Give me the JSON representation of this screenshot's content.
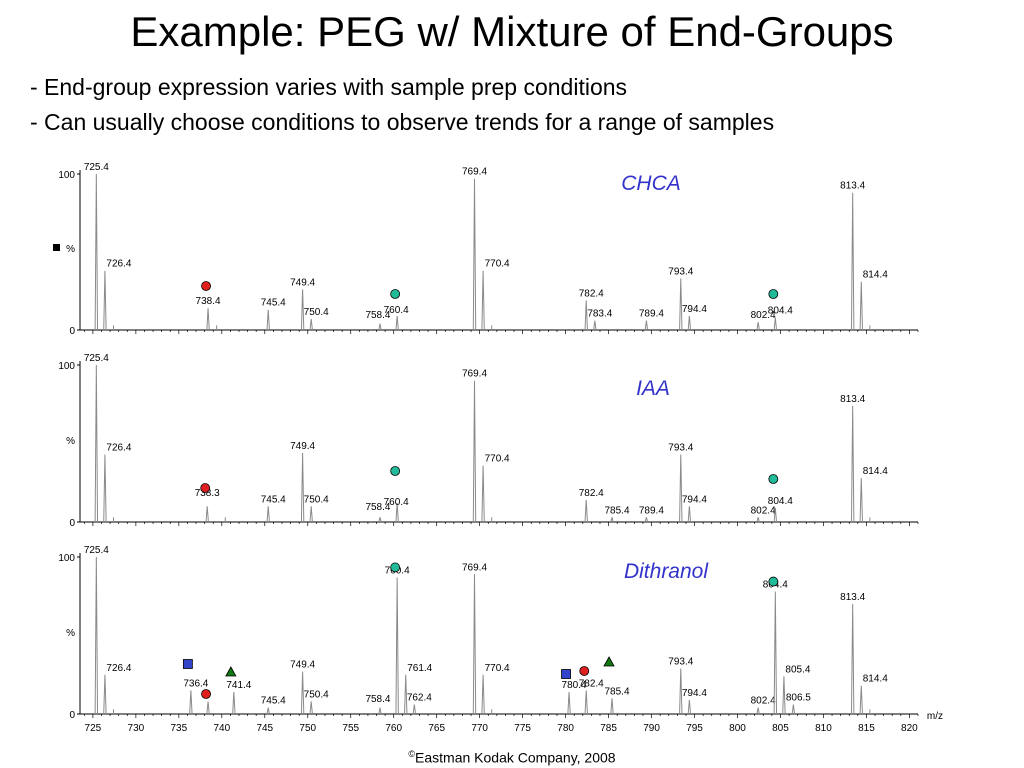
{
  "slide": {
    "title": "Example: PEG w/ Mixture of End-Groups",
    "bullets": [
      "- End-group expression varies with sample prep conditions",
      "- Can usually choose conditions to observe trends for a range of samples"
    ],
    "footer_symbol": "©",
    "footer_text": "Eastman Kodak Company, 2008"
  },
  "colors": {
    "spectrum_line": "#8a8a8a",
    "matrix_label": "#3333cc",
    "red_circle": "#e02020",
    "teal_circle": "#22bb99",
    "blue_square": "#3344cc",
    "green_triangle": "#117711"
  },
  "chart_data": [
    {
      "type": "line",
      "title": "CHCA",
      "xlabel": "m/z",
      "ylabel": "%",
      "xlim": [
        723.5,
        821
      ],
      "ylim": [
        0,
        100
      ],
      "yticks": [
        "0",
        "100"
      ],
      "xticks": [],
      "ylabel_marker": "black-square",
      "peaks": [
        {
          "mz": 725.4,
          "intensity": 100,
          "label": "725.4"
        },
        {
          "mz": 726.4,
          "intensity": 38,
          "label": "726.4"
        },
        {
          "mz": 738.4,
          "intensity": 14,
          "label": "738.4",
          "marker": "red-circle"
        },
        {
          "mz": 745.4,
          "intensity": 13,
          "label": "745.4"
        },
        {
          "mz": 749.4,
          "intensity": 26,
          "label": "749.4"
        },
        {
          "mz": 750.4,
          "intensity": 7,
          "label": "750.4"
        },
        {
          "mz": 758.4,
          "intensity": 4,
          "label": "758.4"
        },
        {
          "mz": 760.4,
          "intensity": 9,
          "label": "760.4",
          "marker": "teal-circle"
        },
        {
          "mz": 769.4,
          "intensity": 97,
          "label": "769.4"
        },
        {
          "mz": 770.4,
          "intensity": 38,
          "label": "770.4"
        },
        {
          "mz": 782.4,
          "intensity": 19,
          "label": "782.4"
        },
        {
          "mz": 783.4,
          "intensity": 6,
          "label": "783.4"
        },
        {
          "mz": 789.4,
          "intensity": 6,
          "label": "789.4"
        },
        {
          "mz": 793.4,
          "intensity": 33,
          "label": "793.4"
        },
        {
          "mz": 794.4,
          "intensity": 9,
          "label": "794.4"
        },
        {
          "mz": 802.4,
          "intensity": 5,
          "label": "802.4"
        },
        {
          "mz": 804.4,
          "intensity": 8,
          "label": "804.4",
          "marker": "teal-circle"
        },
        {
          "mz": 813.4,
          "intensity": 88,
          "label": "813.4"
        },
        {
          "mz": 814.4,
          "intensity": 31,
          "label": "814.4"
        }
      ],
      "minor_peaks": [
        {
          "mz": 727.4,
          "intensity": 3
        },
        {
          "mz": 771.4,
          "intensity": 3
        },
        {
          "mz": 815.4,
          "intensity": 3
        },
        {
          "mz": 739.4,
          "intensity": 3
        }
      ]
    },
    {
      "type": "line",
      "title": "IAA",
      "xlabel": "m/z",
      "ylabel": "%",
      "xlim": [
        723.5,
        821
      ],
      "ylim": [
        0,
        100
      ],
      "yticks": [
        "0",
        "100"
      ],
      "xticks": [],
      "peaks": [
        {
          "mz": 725.4,
          "intensity": 100,
          "label": "725.4"
        },
        {
          "mz": 726.4,
          "intensity": 43,
          "label": "726.4"
        },
        {
          "mz": 738.3,
          "intensity": 10,
          "label": "738.3",
          "marker": "red-circle"
        },
        {
          "mz": 745.4,
          "intensity": 10,
          "label": "745.4"
        },
        {
          "mz": 749.4,
          "intensity": 44,
          "label": "749.4"
        },
        {
          "mz": 750.4,
          "intensity": 10,
          "label": "750.4"
        },
        {
          "mz": 758.4,
          "intensity": 3,
          "label": "758.4"
        },
        {
          "mz": 760.4,
          "intensity": 12,
          "label": "760.4",
          "marker": "teal-circle"
        },
        {
          "mz": 769.4,
          "intensity": 90,
          "label": "769.4"
        },
        {
          "mz": 770.4,
          "intensity": 36,
          "label": "770.4"
        },
        {
          "mz": 782.4,
          "intensity": 14,
          "label": "782.4"
        },
        {
          "mz": 785.4,
          "intensity": 3,
          "label": "785.4"
        },
        {
          "mz": 789.4,
          "intensity": 3,
          "label": "789.4"
        },
        {
          "mz": 793.4,
          "intensity": 43,
          "label": "793.4"
        },
        {
          "mz": 794.4,
          "intensity": 10,
          "label": "794.4"
        },
        {
          "mz": 802.4,
          "intensity": 3,
          "label": "802.4"
        },
        {
          "mz": 804.4,
          "intensity": 9,
          "label": "804.4",
          "marker": "teal-circle"
        },
        {
          "mz": 813.4,
          "intensity": 74,
          "label": "813.4"
        },
        {
          "mz": 814.4,
          "intensity": 28,
          "label": "814.4"
        }
      ],
      "minor_peaks": [
        {
          "mz": 727.4,
          "intensity": 3
        },
        {
          "mz": 771.4,
          "intensity": 3
        },
        {
          "mz": 740.4,
          "intensity": 3
        },
        {
          "mz": 815.4,
          "intensity": 3
        }
      ]
    },
    {
      "type": "line",
      "title": "Dithranol",
      "xlabel": "m/z",
      "ylabel": "%",
      "xlim": [
        723.5,
        821
      ],
      "ylim": [
        0,
        100
      ],
      "yticks": [
        "0",
        "100"
      ],
      "xticks": [
        "725",
        "730",
        "735",
        "740",
        "745",
        "750",
        "755",
        "760",
        "765",
        "770",
        "775",
        "780",
        "785",
        "790",
        "795",
        "800",
        "805",
        "810",
        "815",
        "820"
      ],
      "peaks": [
        {
          "mz": 725.4,
          "intensity": 100,
          "label": "725.4"
        },
        {
          "mz": 726.4,
          "intensity": 25,
          "label": "726.4"
        },
        {
          "mz": 736.4,
          "intensity": 15,
          "label": "736.4",
          "marker": "blue-square"
        },
        {
          "mz": 738.4,
          "intensity": 8,
          "label": "",
          "marker": "red-circle"
        },
        {
          "mz": 741.4,
          "intensity": 14,
          "label": "741.4",
          "marker": "green-triangle"
        },
        {
          "mz": 745.4,
          "intensity": 4,
          "label": "745.4"
        },
        {
          "mz": 749.4,
          "intensity": 27,
          "label": "749.4"
        },
        {
          "mz": 750.4,
          "intensity": 8,
          "label": "750.4"
        },
        {
          "mz": 758.4,
          "intensity": 4,
          "label": "758.4"
        },
        {
          "mz": 760.4,
          "intensity": 87,
          "label": "760.4",
          "marker": "teal-circle"
        },
        {
          "mz": 761.4,
          "intensity": 25,
          "label": "761.4"
        },
        {
          "mz": 762.4,
          "intensity": 6,
          "label": "762.4"
        },
        {
          "mz": 769.4,
          "intensity": 89,
          "label": "769.4"
        },
        {
          "mz": 770.4,
          "intensity": 25,
          "label": "770.4"
        },
        {
          "mz": 780.4,
          "intensity": 14,
          "label": "780.4",
          "marker": "blue-square"
        },
        {
          "mz": 782.4,
          "intensity": 15,
          "label": "782.4",
          "marker": "red-circle"
        },
        {
          "mz": 785.4,
          "intensity": 10,
          "label": "785.4",
          "marker": "green-triangle"
        },
        {
          "mz": 793.4,
          "intensity": 29,
          "label": "793.4"
        },
        {
          "mz": 794.4,
          "intensity": 9,
          "label": "794.4"
        },
        {
          "mz": 802.4,
          "intensity": 4,
          "label": "802.4"
        },
        {
          "mz": 804.4,
          "intensity": 78,
          "label": "804.4",
          "marker": "teal-circle"
        },
        {
          "mz": 805.4,
          "intensity": 24,
          "label": "805.4"
        },
        {
          "mz": 806.5,
          "intensity": 6,
          "label": "806.5"
        },
        {
          "mz": 813.4,
          "intensity": 70,
          "label": "813.4"
        },
        {
          "mz": 814.4,
          "intensity": 18,
          "label": "814.4"
        }
      ],
      "minor_peaks": [
        {
          "mz": 727.4,
          "intensity": 3
        },
        {
          "mz": 771.4,
          "intensity": 3
        },
        {
          "mz": 815.4,
          "intensity": 3
        }
      ]
    }
  ]
}
